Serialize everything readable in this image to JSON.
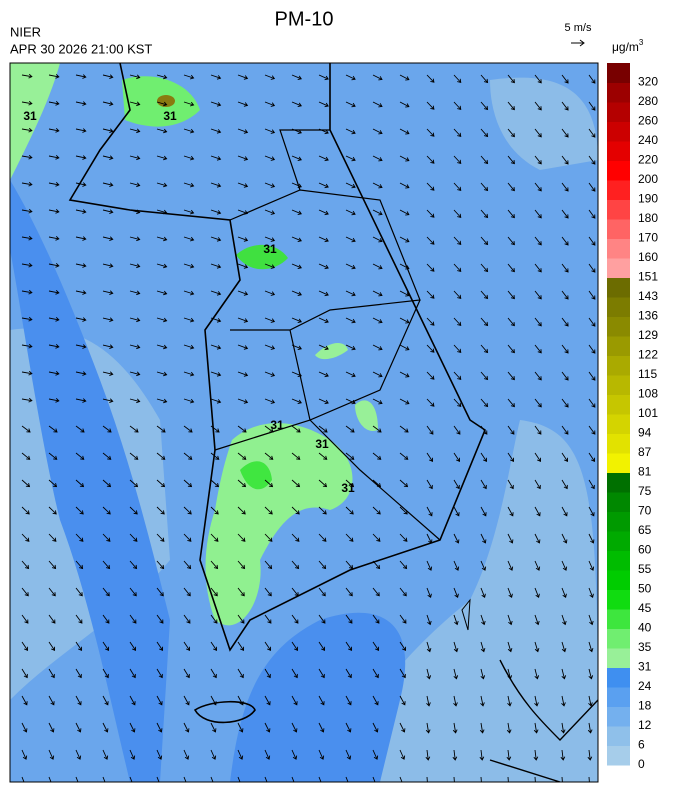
{
  "header": {
    "title": "PM-10",
    "agency": "NIER",
    "timestamp": "APR 30 2026 21:00 KST",
    "wind_reference": "5 m/s"
  },
  "legend": {
    "unit": "μg/m",
    "unit_superscript": "3",
    "levels": [
      {
        "value": 0,
        "color": "#a6cdea"
      },
      {
        "value": 6,
        "color": "#8fc0ea"
      },
      {
        "value": 12,
        "color": "#74b0ee"
      },
      {
        "value": 18,
        "color": "#5aa0f0"
      },
      {
        "value": 24,
        "color": "#3f8ff0"
      },
      {
        "value": 31,
        "color": "#98f098"
      },
      {
        "value": 35,
        "color": "#70ee70"
      },
      {
        "value": 40,
        "color": "#3ee63e"
      },
      {
        "value": 45,
        "color": "#10dc10"
      },
      {
        "value": 50,
        "color": "#00cc00"
      },
      {
        "value": 55,
        "color": "#00bc00"
      },
      {
        "value": 60,
        "color": "#00aa00"
      },
      {
        "value": 65,
        "color": "#009a00"
      },
      {
        "value": 70,
        "color": "#008800"
      },
      {
        "value": 75,
        "color": "#007000"
      },
      {
        "value": 81,
        "color": "#f2f200"
      },
      {
        "value": 87,
        "color": "#e2e200"
      },
      {
        "value": 94,
        "color": "#d4d400"
      },
      {
        "value": 101,
        "color": "#c6c600"
      },
      {
        "value": 108,
        "color": "#b8b800"
      },
      {
        "value": 115,
        "color": "#aaaa00"
      },
      {
        "value": 122,
        "color": "#9a9a00"
      },
      {
        "value": 129,
        "color": "#8a8a00"
      },
      {
        "value": 136,
        "color": "#7c7c00"
      },
      {
        "value": 143,
        "color": "#6c6c00"
      },
      {
        "value": 151,
        "color": "#ffa0a0"
      },
      {
        "value": 160,
        "color": "#ff8484"
      },
      {
        "value": 170,
        "color": "#ff6464"
      },
      {
        "value": 180,
        "color": "#ff4444"
      },
      {
        "value": 190,
        "color": "#ff2020"
      },
      {
        "value": 200,
        "color": "#ff0000"
      },
      {
        "value": 220,
        "color": "#e40000"
      },
      {
        "value": 240,
        "color": "#cc0000"
      },
      {
        "value": 260,
        "color": "#b40000"
      },
      {
        "value": 280,
        "color": "#9c0000"
      },
      {
        "value": 320,
        "color": "#780000"
      }
    ]
  },
  "contour_labels": [
    "31",
    "31",
    "31",
    "31",
    "31",
    "31"
  ]
}
